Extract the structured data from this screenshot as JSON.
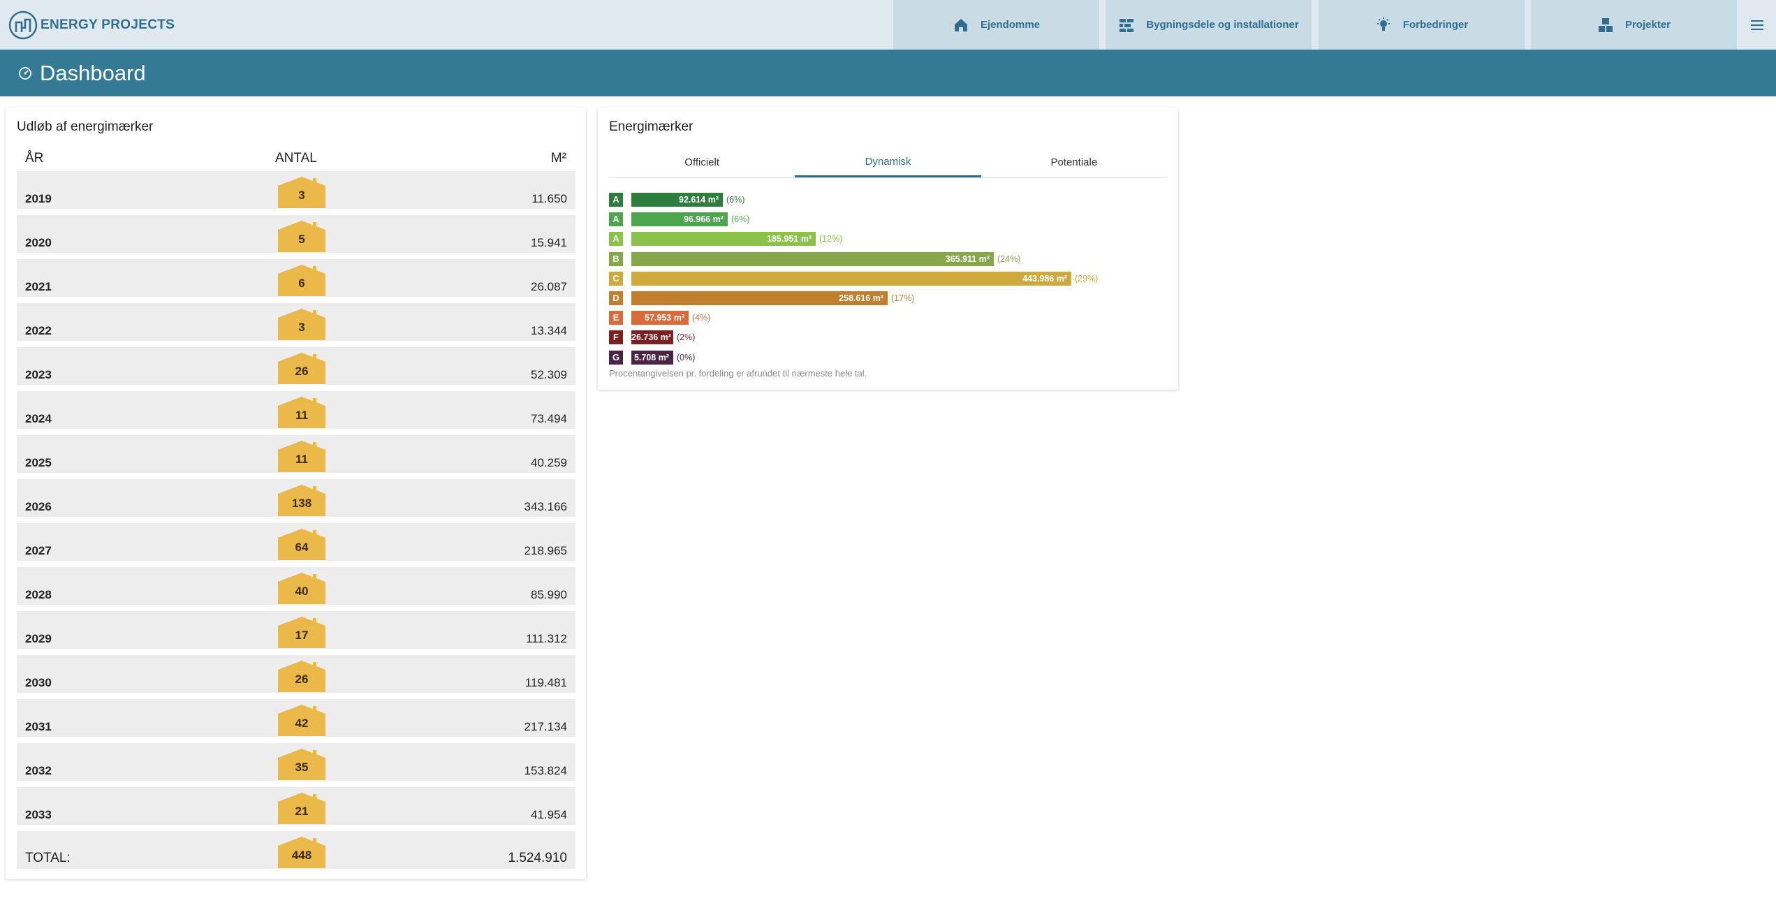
{
  "app": {
    "brand": "ENERGY PROJECTS"
  },
  "nav": {
    "items": [
      {
        "label": "Ejendomme",
        "icon": "home-icon"
      },
      {
        "label": "Bygningsdele og installationer",
        "icon": "bricks-icon"
      },
      {
        "label": "Forbedringer",
        "icon": "lightbulb-icon"
      },
      {
        "label": "Projekter",
        "icon": "blocks-icon"
      }
    ],
    "menu_icon": "hamburger-menu-icon"
  },
  "page": {
    "title": "Dashboard",
    "icon": "dashboard-gauge-icon"
  },
  "expirations": {
    "title": "Udløb af energimærker",
    "columns": {
      "year": "ÅR",
      "count": "ANTAL",
      "m2": "M²"
    },
    "rows": [
      {
        "year": "2019",
        "count": "3",
        "m2": "11.650"
      },
      {
        "year": "2020",
        "count": "5",
        "m2": "15.941"
      },
      {
        "year": "2021",
        "count": "6",
        "m2": "26.087"
      },
      {
        "year": "2022",
        "count": "3",
        "m2": "13.344"
      },
      {
        "year": "2023",
        "count": "26",
        "m2": "52.309"
      },
      {
        "year": "2024",
        "count": "11",
        "m2": "73.494"
      },
      {
        "year": "2025",
        "count": "11",
        "m2": "40.259"
      },
      {
        "year": "2026",
        "count": "138",
        "m2": "343.166"
      },
      {
        "year": "2027",
        "count": "64",
        "m2": "218.965"
      },
      {
        "year": "2028",
        "count": "40",
        "m2": "85.990"
      },
      {
        "year": "2029",
        "count": "17",
        "m2": "111.312"
      },
      {
        "year": "2030",
        "count": "26",
        "m2": "119.481"
      },
      {
        "year": "2031",
        "count": "42",
        "m2": "217.134"
      },
      {
        "year": "2032",
        "count": "35",
        "m2": "153.824"
      },
      {
        "year": "2033",
        "count": "21",
        "m2": "41.954"
      }
    ],
    "total": {
      "label": "TOTAL:",
      "count": "448",
      "m2": "1.524.910"
    },
    "house_color": "#ebb94a"
  },
  "energy_labels": {
    "title": "Energimærker",
    "tabs": [
      {
        "label": "Officielt",
        "active": false
      },
      {
        "label": "Dynamisk",
        "active": true
      },
      {
        "label": "Potentiale",
        "active": false
      }
    ],
    "bars": [
      {
        "label": "A",
        "value": 92614,
        "text": "92.614 m²",
        "pct": "(6%)",
        "color": "#2e7d3d"
      },
      {
        "label": "A",
        "value": 96966,
        "text": "96.966 m²",
        "pct": "(6%)",
        "color": "#4ea550"
      },
      {
        "label": "A",
        "value": 185951,
        "text": "185.951 m²",
        "pct": "(12%)",
        "color": "#8bc34a"
      },
      {
        "label": "B",
        "value": 365911,
        "text": "365.911 m²",
        "pct": "(24%)",
        "color": "#87a84a"
      },
      {
        "label": "C",
        "value": 443986,
        "text": "443.986 m²",
        "pct": "(29%)",
        "color": "#ceaa3e"
      },
      {
        "label": "D",
        "value": 258616,
        "text": "258.616 m²",
        "pct": "(17%)",
        "color": "#c07f2c"
      },
      {
        "label": "E",
        "value": 57953,
        "text": "57.953 m²",
        "pct": "(4%)",
        "color": "#db6a3a"
      },
      {
        "label": "F",
        "value": 26736,
        "text": "26.736 m²",
        "pct": "(2%)",
        "color": "#7d1e22"
      },
      {
        "label": "G",
        "value": 5708,
        "text": "5.708 m²",
        "pct": "(0%)",
        "color": "#4a2443"
      }
    ],
    "max_value": 443986,
    "note": "Procentangivelsen pr. fordeling er afrundet til nærmeste hele tal."
  },
  "colors": {
    "brand": "#2f6f8d",
    "header_bar": "#357a94",
    "topbar": "#dfe9ef",
    "nav_tab": "#c9dbe5"
  }
}
